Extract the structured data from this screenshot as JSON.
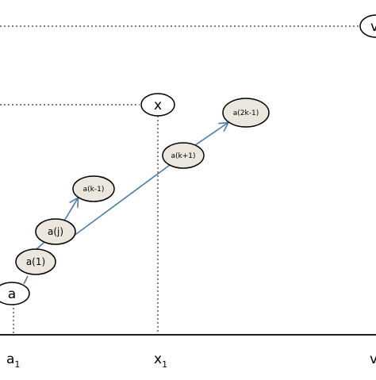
{
  "colors": {
    "arrow": "#4a7aab",
    "node_fill": "#ebe7de",
    "node_stroke": "#000000",
    "guide_line": "#333333",
    "axis": "#000000"
  },
  "axis_labels": {
    "a1": {
      "main": "a",
      "sub": "1"
    },
    "x1": {
      "main": "x",
      "sub": "1"
    },
    "v": {
      "main": "v"
    }
  },
  "nodes": {
    "a": "a",
    "a_1": "a(1)",
    "a_j": "a(j)",
    "a_k_minus_1": "a(k-1)",
    "a_k_plus_1": "a(k+1)",
    "a_2k_minus_1": "a(2k-1)",
    "x": "x",
    "v": "v"
  }
}
